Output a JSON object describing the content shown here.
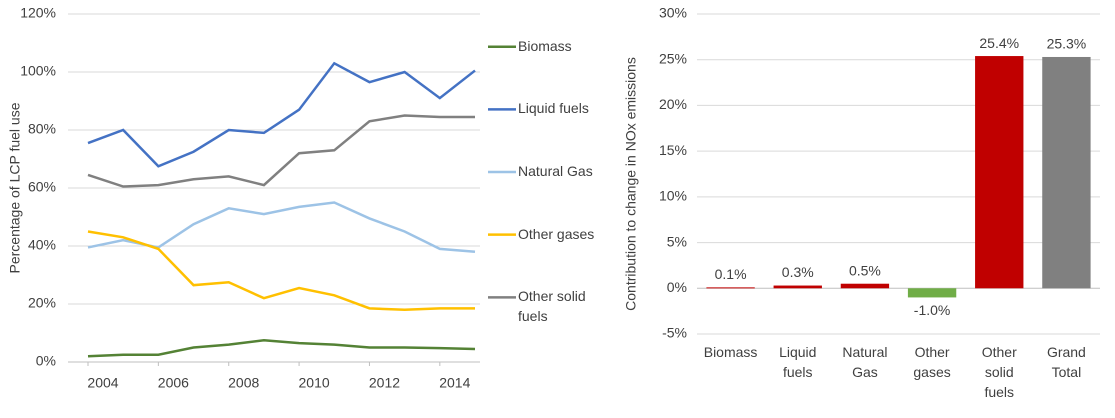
{
  "chart_data": [
    {
      "type": "line",
      "y_label": "Percentage of LCP fuel use",
      "x": [
        2004,
        2005,
        2006,
        2007,
        2008,
        2009,
        2010,
        2011,
        2012,
        2013,
        2014,
        2015
      ],
      "xlim": [
        2004,
        2015
      ],
      "xticks": [
        2004,
        2006,
        2008,
        2010,
        2012,
        2014
      ],
      "ylim": [
        0,
        120
      ],
      "yticks": [
        {
          "value": 0,
          "label": "0%"
        },
        {
          "value": 20,
          "label": "20%"
        },
        {
          "value": 40,
          "label": "40%"
        },
        {
          "value": 60,
          "label": "60%"
        },
        {
          "value": 80,
          "label": "80%"
        },
        {
          "value": 100,
          "label": "100%"
        },
        {
          "value": 120,
          "label": "120%"
        }
      ],
      "grid": true,
      "legend": "right",
      "series": [
        {
          "name": "Biomass",
          "color": "#548235",
          "values": [
            2,
            2.5,
            2.5,
            5,
            6,
            7.5,
            6.5,
            6,
            5,
            5,
            4.8,
            4.5
          ]
        },
        {
          "name": "Liquid fuels",
          "color": "#4472c4",
          "values": [
            75.5,
            80,
            67.5,
            72.5,
            80,
            79,
            87,
            103,
            96.5,
            100,
            91,
            100.5
          ]
        },
        {
          "name": "Natural Gas",
          "color": "#9dc3e6",
          "values": [
            39.5,
            42,
            39.5,
            47.5,
            53,
            51,
            53.5,
            55,
            49.5,
            45,
            39,
            38
          ]
        },
        {
          "name": "Other gases",
          "color": "#ffc000",
          "values": [
            45,
            43,
            39,
            26.5,
            27.5,
            22,
            25.5,
            23,
            18.5,
            18,
            18.5,
            18.5
          ]
        },
        {
          "name": "Other solid fuels",
          "color": "#808080",
          "values": [
            64.5,
            60.5,
            61,
            63,
            64,
            61,
            72,
            73,
            83,
            85,
            84.5,
            84.5
          ]
        }
      ]
    },
    {
      "type": "bar",
      "y_label": "Contribution to change in NOx emissions",
      "categories": [
        "Biomass",
        "Liquid fuels",
        "Natural Gas",
        "Other gases",
        "Other solid fuels",
        "Grand Total"
      ],
      "values": [
        0.1,
        0.3,
        0.5,
        -1.0,
        25.4,
        25.3
      ],
      "value_labels": [
        "0.1%",
        "0.3%",
        "0.5%",
        "-1.0%",
        "25.4%",
        "25.3%"
      ],
      "colors": [
        "#c00000",
        "#c00000",
        "#c00000",
        "#70ad47",
        "#c00000",
        "#808080"
      ],
      "ylim": [
        -5,
        30
      ],
      "yticks": [
        {
          "value": -5,
          "label": "-5%"
        },
        {
          "value": 0,
          "label": "0%"
        },
        {
          "value": 5,
          "label": "5%"
        },
        {
          "value": 10,
          "label": "10%"
        },
        {
          "value": 15,
          "label": "15%"
        },
        {
          "value": 20,
          "label": "20%"
        },
        {
          "value": 25,
          "label": "25%"
        },
        {
          "value": 30,
          "label": "30%"
        }
      ],
      "grid": true
    }
  ]
}
